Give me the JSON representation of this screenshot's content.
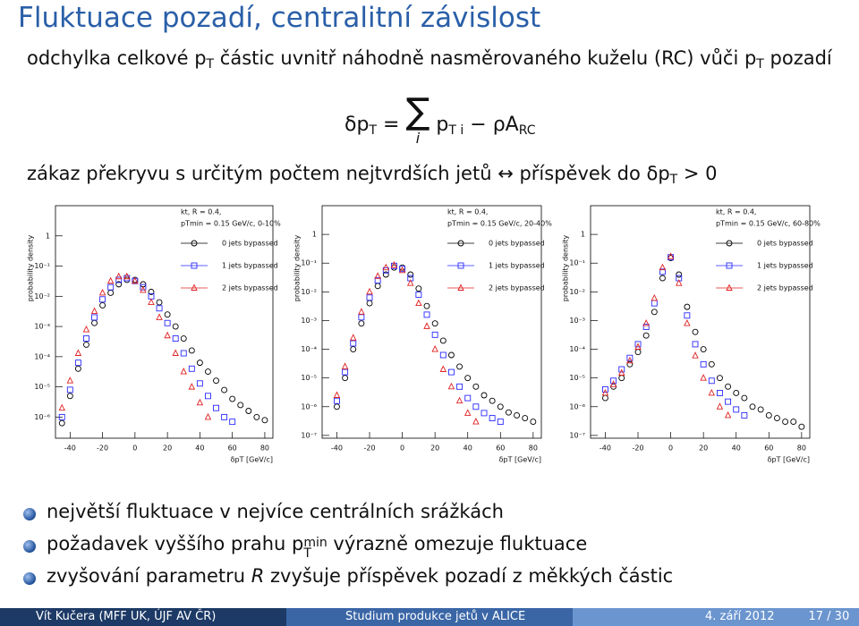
{
  "title": "Fluktuace pozadí, centralitní závislost",
  "line1": [
    "odchylka celkové p",
    "T",
    " částic uvnitř náhodně nasměrovaného kuželu (RC) vůči p",
    "T",
    " pozadí"
  ],
  "equation": [
    "δp",
    "T",
    "=",
    "∑",
    "i",
    "p",
    "T i",
    "− ρA",
    "RC"
  ],
  "line3": [
    "zákaz překryvu s určitým počtem nejtvrdších jetů ↔ příspěvek do δp",
    "T",
    " > 0"
  ],
  "bullets": [
    [
      "největší fluktuace v nejvíce centrálních srážkách"
    ],
    [
      "požadavek vyššího prahu p",
      "min",
      "T",
      " výrazně omezuje fluktuace"
    ],
    [
      "zvyšování parametru ",
      "R",
      " zvyšuje příspěvek pozadí z měkkých částic"
    ]
  ],
  "footer": {
    "author": "Vít Kučera (MFF UK, ÚJF AV ČR)",
    "talk": "Studium produkce jetů v ALICE",
    "date": "4. září 2012",
    "page": "17 / 30"
  },
  "chart_data": [
    {
      "type": "scatter",
      "log_y": true,
      "legend": "upper right",
      "y_label": "probability density",
      "x_label": "δpT [GeV/c]",
      "legend_title": [
        "kt, R = 0.4,",
        "pTmin = 0.15 GeV/c, 0-10%"
      ],
      "xlim": [
        -49,
        85
      ],
      "ylim": [
        2e-07,
        10
      ],
      "xticks": [
        -40,
        -20,
        0,
        20,
        40,
        60,
        80
      ],
      "yticks": [
        {
          "value": 1e-06,
          "label": "10⁻⁶"
        },
        {
          "value": 1e-05,
          "label": "10⁻⁵"
        },
        {
          "value": 0.0001,
          "label": "10⁻⁴"
        },
        {
          "value": 0.001,
          "label": "10⁻³"
        },
        {
          "value": 0.01,
          "label": "10⁻²"
        },
        {
          "value": 0.1,
          "label": "10⁻¹"
        },
        1
      ],
      "x": [
        -45,
        -40,
        -35,
        -30,
        -25,
        -20,
        -15,
        -10,
        -5,
        0,
        5,
        10,
        15,
        20,
        25,
        30,
        35,
        40,
        45,
        50,
        55,
        60,
        65,
        70,
        75,
        80
      ],
      "series": [
        {
          "name": "0 jets bypassed",
          "color": "#000000",
          "marker": "circle",
          "values": [
            6.3e-07,
            5e-06,
            4e-05,
            0.00025,
            0.0013,
            0.005,
            0.013,
            0.025,
            0.035,
            0.035,
            0.025,
            0.014,
            0.0063,
            0.0025,
            0.001,
            0.0004,
            0.00016,
            6.3e-05,
            3.2e-05,
            1.6e-05,
            7.9e-06,
            4e-06,
            2.5e-06,
            1.6e-06,
            1e-06,
            7.9e-07
          ]
        },
        {
          "name": "1 jets bypassed",
          "color": "#2a2aff",
          "marker": "square",
          "values": [
            1e-06,
            8e-06,
            6.3e-05,
            0.0004,
            0.002,
            0.0079,
            0.02,
            0.035,
            0.04,
            0.032,
            0.02,
            0.01,
            0.004,
            0.0013,
            0.0004,
            0.00013,
            4e-05,
            1.3e-05,
            5e-06,
            2e-06,
            1e-06,
            7e-07,
            null,
            null,
            null,
            null
          ]
        },
        {
          "name": "2 jets bypassed",
          "color": "#e02020",
          "marker": "triangle",
          "values": [
            2e-06,
            1.6e-05,
            0.00013,
            0.00079,
            0.0032,
            0.013,
            0.032,
            0.045,
            0.045,
            0.032,
            0.016,
            0.0063,
            0.002,
            0.0005,
            0.00013,
            3.2e-05,
            1e-05,
            3e-06,
            1e-06,
            null,
            null,
            null,
            null,
            null,
            null,
            null
          ]
        }
      ]
    },
    {
      "type": "scatter",
      "log_y": true,
      "legend": "upper right",
      "y_label": "probability density",
      "x_label": "δpT [GeV/c]",
      "legend_title": [
        "kt, R = 0.4,",
        "pTmin = 0.15 GeV/c, 20-40%"
      ],
      "xlim": [
        -49,
        85
      ],
      "ylim": [
        8e-08,
        10
      ],
      "xticks": [
        -40,
        -20,
        0,
        20,
        40,
        60,
        80
      ],
      "yticks": [
        {
          "value": 1e-07,
          "label": "10⁻⁷"
        },
        {
          "value": 1e-06,
          "label": "10⁻⁶"
        },
        {
          "value": 1e-05,
          "label": "10⁻⁵"
        },
        {
          "value": 0.0001,
          "label": "10⁻⁴"
        },
        {
          "value": 0.001,
          "label": "10⁻³"
        },
        {
          "value": 0.01,
          "label": "10⁻²"
        },
        {
          "value": 0.1,
          "label": "10⁻¹"
        },
        1
      ],
      "x": [
        -40,
        -35,
        -30,
        -25,
        -20,
        -15,
        -10,
        -5,
        0,
        5,
        10,
        15,
        20,
        25,
        30,
        35,
        40,
        45,
        50,
        55,
        60,
        65,
        70,
        75,
        80
      ],
      "series": [
        {
          "name": "0 jets bypassed",
          "color": "#000000",
          "marker": "circle",
          "values": [
            1e-06,
            1e-05,
            0.0001,
            0.00079,
            0.004,
            0.016,
            0.04,
            0.07,
            0.07,
            0.04,
            0.013,
            0.0032,
            0.00079,
            0.0002,
            6.3e-05,
            2.5e-05,
            1e-05,
            5e-06,
            2.5e-06,
            1.6e-06,
            1e-06,
            6.3e-07,
            5e-07,
            4e-07,
            3e-07
          ]
        },
        {
          "name": "1 jets bypassed",
          "color": "#2a2aff",
          "marker": "square",
          "values": [
            1.6e-06,
            1.6e-05,
            0.00016,
            0.0013,
            0.0063,
            0.025,
            0.056,
            0.08,
            0.063,
            0.03,
            0.008,
            0.0016,
            0.00032,
            6.3e-05,
            1.6e-05,
            5e-06,
            2e-06,
            1e-06,
            6e-07,
            4e-07,
            3e-07,
            null,
            null,
            null,
            null
          ]
        },
        {
          "name": "2 jets bypassed",
          "color": "#e02020",
          "marker": "triangle",
          "values": [
            2.5e-06,
            2.5e-05,
            0.00025,
            0.002,
            0.01,
            0.035,
            0.07,
            0.085,
            0.056,
            0.02,
            0.004,
            0.00063,
            0.0001,
            2e-05,
            5e-06,
            1.6e-06,
            6e-07,
            3e-07,
            null,
            null,
            null,
            null,
            null,
            null,
            null
          ]
        }
      ]
    },
    {
      "type": "scatter",
      "log_y": true,
      "legend": "upper right",
      "y_label": "probability density",
      "x_label": "δpT [GeV/c]",
      "legend_title": [
        "kt, R = 0.4,",
        "pTmin = 0.15 GeV/c, 60-80%"
      ],
      "xlim": [
        -49,
        85
      ],
      "ylim": [
        8e-08,
        10
      ],
      "xticks": [
        -40,
        -20,
        0,
        20,
        40,
        60,
        80
      ],
      "yticks": [
        {
          "value": 1e-07,
          "label": "10⁻⁷"
        },
        {
          "value": 1e-06,
          "label": "10⁻⁶"
        },
        {
          "value": 1e-05,
          "label": "10⁻⁵"
        },
        {
          "value": 0.0001,
          "label": "10⁻⁴"
        },
        {
          "value": 0.001,
          "label": "10⁻³"
        },
        {
          "value": 0.01,
          "label": "10⁻²"
        },
        {
          "value": 0.1,
          "label": "10⁻¹"
        },
        1
      ],
      "x": [
        -40,
        -35,
        -30,
        -25,
        -20,
        -15,
        -10,
        -5,
        0,
        5,
        10,
        15,
        20,
        25,
        30,
        35,
        40,
        45,
        50,
        55,
        60,
        65,
        70,
        75,
        80
      ],
      "series": [
        {
          "name": "0 jets bypassed",
          "color": "#000000",
          "marker": "circle",
          "values": [
            2e-06,
            5e-06,
            1e-05,
            3e-05,
            8e-05,
            0.0003,
            0.002,
            0.03,
            0.15,
            0.04,
            0.003,
            0.0004,
            0.0001,
            3e-05,
            1e-05,
            5e-06,
            3e-06,
            2e-06,
            1e-06,
            8e-07,
            5e-07,
            4e-07,
            3e-07,
            3e-07,
            2e-07
          ]
        },
        {
          "name": "1 jets bypassed",
          "color": "#2a2aff",
          "marker": "square",
          "values": [
            4e-06,
            8e-06,
            2e-05,
            5e-05,
            0.00015,
            0.0006,
            0.004,
            0.05,
            0.16,
            0.03,
            0.0015,
            0.00015,
            3e-05,
            8e-06,
            3e-06,
            1.5e-06,
            8e-07,
            5e-07,
            null,
            null,
            null,
            null,
            null,
            null,
            null
          ]
        },
        {
          "name": "2 jets bypassed",
          "color": "#e02020",
          "marker": "triangle",
          "values": [
            3e-06,
            6e-06,
            1.5e-05,
            4e-05,
            0.00012,
            0.0008,
            0.006,
            0.07,
            0.17,
            0.02,
            0.0008,
            6e-05,
            1e-05,
            3e-06,
            1e-06,
            5e-07,
            null,
            null,
            null,
            null,
            null,
            null,
            null,
            null,
            null
          ]
        }
      ]
    }
  ]
}
